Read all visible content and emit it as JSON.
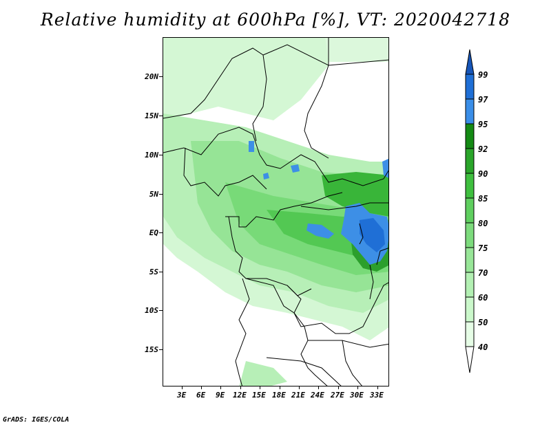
{
  "title": "Relative humidity at 600hPa [%], VT: 2020042718",
  "credit": "GrADS: IGES/COLA",
  "map": {
    "lat_labels": [
      "20N",
      "15N",
      "10N",
      "5N",
      "EQ",
      "5S",
      "10S",
      "15S"
    ],
    "lat_values": [
      20,
      15,
      10,
      5,
      0,
      -5,
      -10,
      -15
    ],
    "lon_labels": [
      "3E",
      "6E",
      "9E",
      "12E",
      "15E",
      "18E",
      "21E",
      "24E",
      "27E",
      "30E",
      "33E"
    ],
    "lon_values": [
      3,
      6,
      9,
      12,
      15,
      18,
      21,
      24,
      27,
      30,
      33
    ],
    "lat_range": [
      -19.8,
      24.8
    ],
    "lon_range": [
      0,
      34.7
    ]
  },
  "colorbar": {
    "levels": [
      "40",
      "50",
      "60",
      "70",
      "75",
      "80",
      "85",
      "90",
      "92",
      "95",
      "97",
      "99"
    ],
    "colors": [
      "#ffffff",
      "#e6fde6",
      "#cbf8cb",
      "#b3f0b3",
      "#98e698",
      "#7ddb7d",
      "#5fcf5f",
      "#3fbf3f",
      "#2aa52a",
      "#148a14",
      "#3a8ee8",
      "#1f6fd6",
      "#1655b8"
    ]
  },
  "field_colors": {
    "background": "#ffffff",
    "light": "#dcf8dc",
    "mid": "#a9eaa9",
    "strong": "#74d874",
    "darker": "#4ac64a",
    "darkest": "#2ea82e",
    "blue": "#3d8fe6",
    "dark_blue": "#1a5fc8"
  }
}
